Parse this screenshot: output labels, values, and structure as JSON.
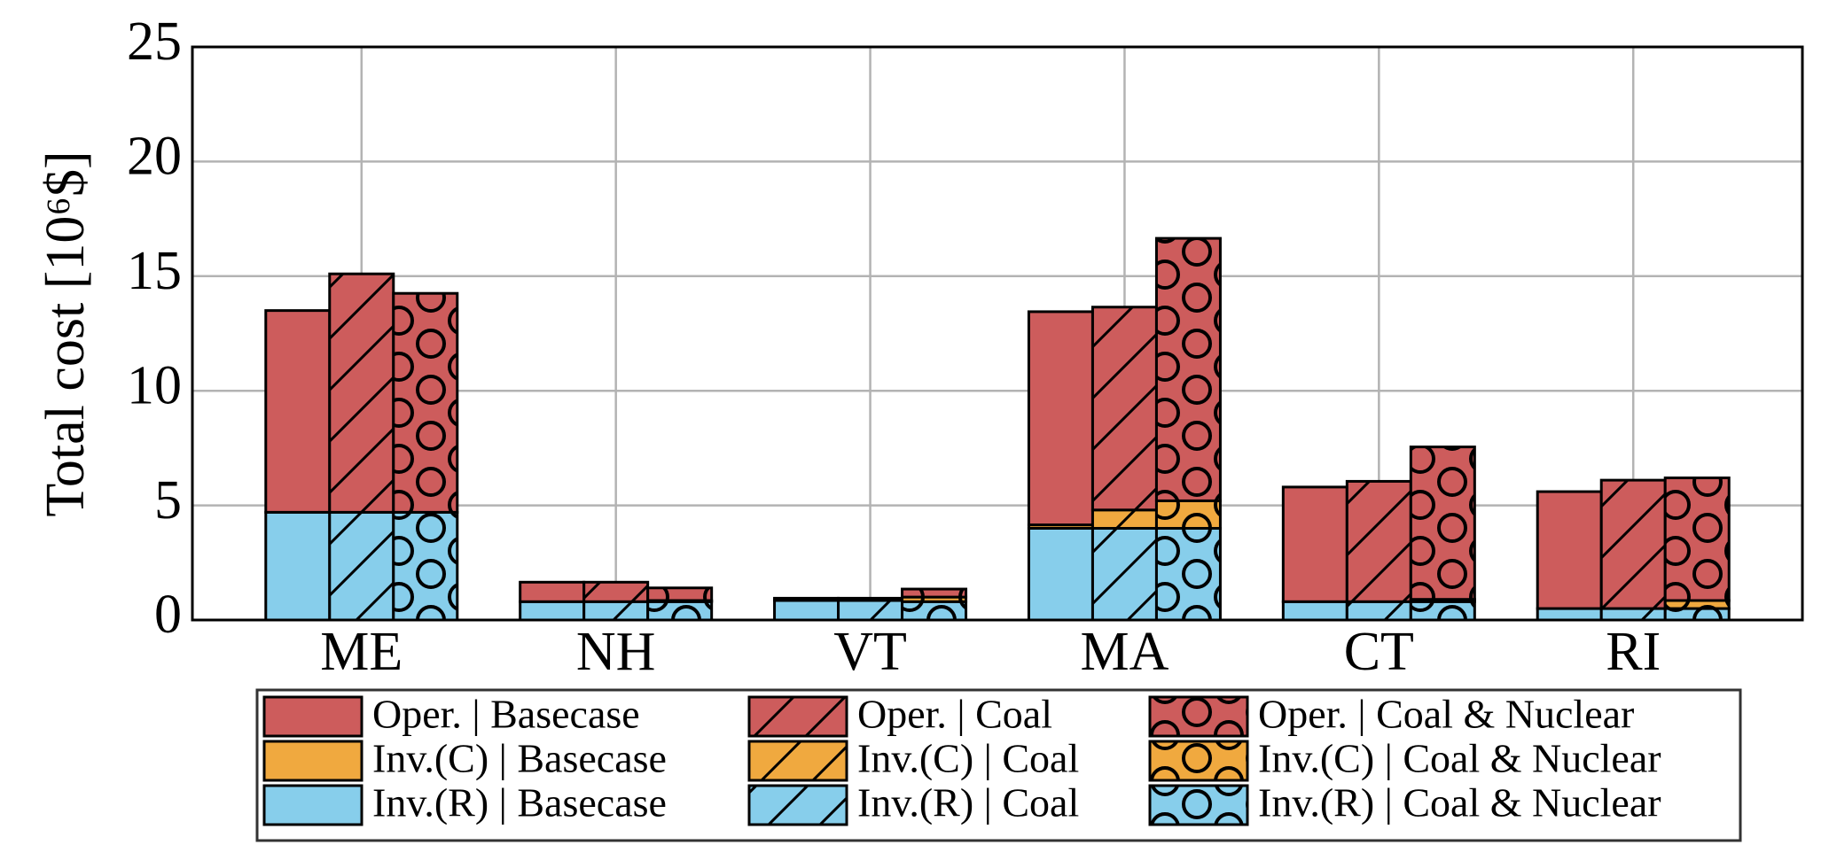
{
  "chart_data": {
    "type": "stacked-grouped-bar",
    "ylabel": "Total cost [10⁶$]",
    "categories": [
      "ME",
      "NH",
      "VT",
      "MA",
      "CT",
      "RI"
    ],
    "ylim": [
      0,
      25
    ],
    "yticks": [
      0,
      5,
      10,
      15,
      20,
      25
    ],
    "grid": true,
    "series": [
      {
        "name": "Oper. | Basecase",
        "color": "#cd5c5c",
        "pattern": "none",
        "stack": 0,
        "values": [
          8.8,
          0.85,
          0.05,
          9.3,
          5.0,
          5.1
        ]
      },
      {
        "name": "Inv.(C) | Basecase",
        "color": "#f0a93f",
        "pattern": "none",
        "stack": 0,
        "values": [
          0,
          0,
          0.05,
          0.15,
          0,
          0
        ]
      },
      {
        "name": "Inv.(R) | Basecase",
        "color": "#87ceeb",
        "pattern": "none",
        "stack": 0,
        "values": [
          4.7,
          0.8,
          0.85,
          4.0,
          0.8,
          0.5
        ]
      },
      {
        "name": "Oper. | Coal",
        "color": "#cd5c5c",
        "pattern": "hatch",
        "stack": 1,
        "values": [
          10.4,
          0.85,
          0.05,
          8.85,
          5.25,
          5.6
        ]
      },
      {
        "name": "Inv.(C) | Coal",
        "color": "#f0a93f",
        "pattern": "hatch",
        "stack": 1,
        "values": [
          0,
          0,
          0.05,
          0.8,
          0,
          0
        ]
      },
      {
        "name": "Inv.(R) | Coal",
        "color": "#87ceeb",
        "pattern": "hatch",
        "stack": 1,
        "values": [
          4.7,
          0.8,
          0.85,
          4.0,
          0.8,
          0.5
        ]
      },
      {
        "name": "Oper. | Coal & Nuclear",
        "color": "#cd5c5c",
        "pattern": "circles",
        "stack": 2,
        "values": [
          9.55,
          0.55,
          0.35,
          11.45,
          6.65,
          5.35
        ]
      },
      {
        "name": "Inv.(C) | Coal & Nuclear",
        "color": "#f0a93f",
        "pattern": "circles",
        "stack": 2,
        "values": [
          0,
          0.05,
          0.2,
          1.2,
          0.1,
          0.35
        ]
      },
      {
        "name": "Inv.(R) | Coal & Nuclear",
        "color": "#87ceeb",
        "pattern": "circles",
        "stack": 2,
        "values": [
          4.7,
          0.8,
          0.8,
          4.0,
          0.8,
          0.5
        ]
      }
    ]
  }
}
